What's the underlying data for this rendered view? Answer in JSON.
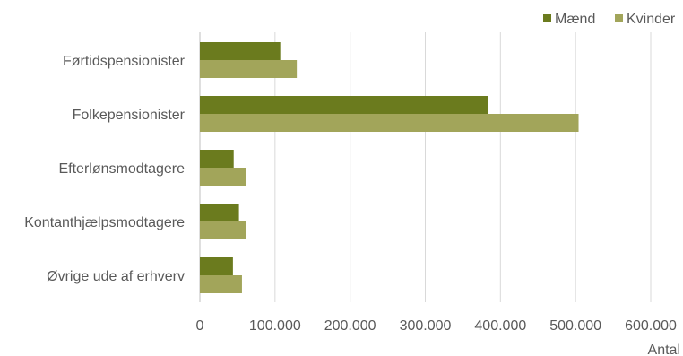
{
  "chart_data": {
    "type": "bar",
    "orientation": "horizontal",
    "categories": [
      "Førtidspensionister",
      "Folkepensionister",
      "Efterlønsmodtagere",
      "Kontanthjælpsmodtagere",
      "Øvrige ude af erhverv"
    ],
    "series": [
      {
        "name": "Mænd",
        "color": "#6B7B1E",
        "values": [
          107000,
          383000,
          45000,
          52000,
          44000
        ]
      },
      {
        "name": "Kvinder",
        "color": "#A2A55A",
        "values": [
          129000,
          504000,
          62000,
          61000,
          56000
        ]
      }
    ],
    "xlabel": "Antal",
    "xlim": [
      0,
      600000
    ],
    "xticks": [
      {
        "value": 0,
        "label": "0"
      },
      {
        "value": 100000,
        "label": "100.000"
      },
      {
        "value": 200000,
        "label": "200.000"
      },
      {
        "value": 300000,
        "label": "300.000"
      },
      {
        "value": 400000,
        "label": "400.000"
      },
      {
        "value": 500000,
        "label": "500.000"
      },
      {
        "value": 600000,
        "label": "600.000"
      }
    ],
    "grid": true,
    "legend_position": "top-right"
  }
}
